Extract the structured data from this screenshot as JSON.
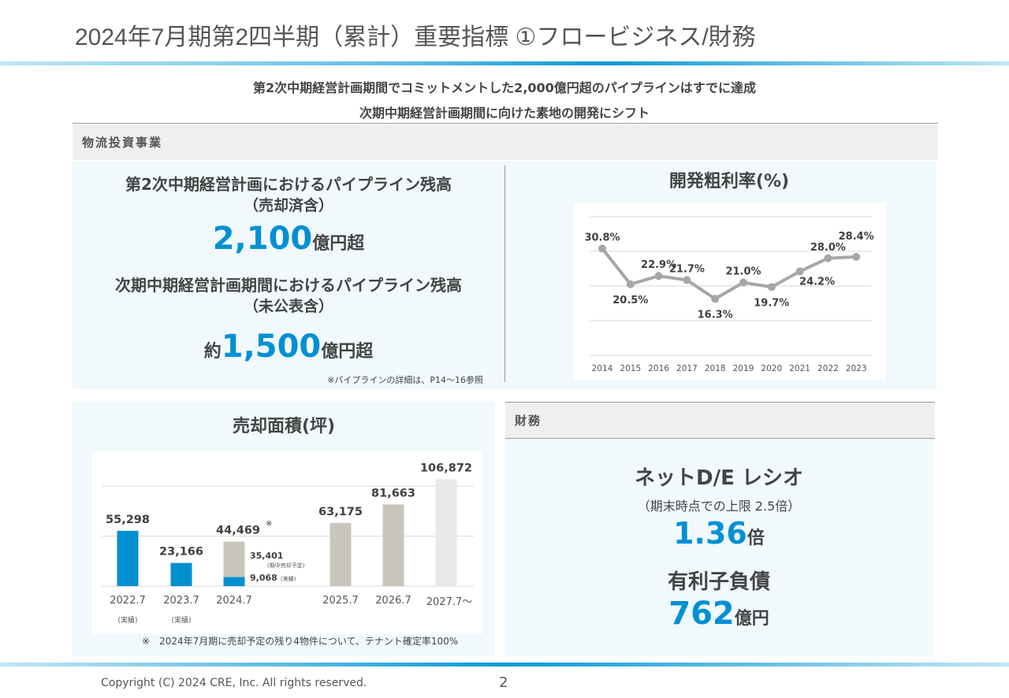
{
  "header": {
    "title": "2024年7月期第2四半期（累計）重要指標 ①フロービジネス/財務"
  },
  "subtitle": {
    "line1": "第2次中期経営計画期間でコミットメントした2,000億円超のパイプラインはすでに達成",
    "line2": "次期中期経営計画期間に向けた素地の開発にシフト"
  },
  "logistics": {
    "section_label": "物流投資事業",
    "pipeline1_title": "第2次中期経営計画におけるパイプライン残高",
    "pipeline1_sub": "（売却済含）",
    "pipeline1_value": "2,100",
    "pipeline1_unit": "億円超",
    "pipeline2_title": "次期中期経営計画期間におけるパイプライン残高",
    "pipeline2_sub": "（未公表含）",
    "pipeline2_prefix": "約",
    "pipeline2_value": "1,500",
    "pipeline2_unit": "億円超",
    "note": "※パイプラインの詳細は、P14～16参照"
  },
  "finance": {
    "section_label": "財務",
    "de_title": "ネットD/E レシオ",
    "de_sub": "（期末時点での上限 2.5倍）",
    "de_value": "1.36",
    "de_unit": "倍",
    "debt_title": "有利子負債",
    "debt_value": "762",
    "debt_unit": "億円"
  },
  "chart_data": [
    {
      "type": "line",
      "title": "開発粗利率(%)",
      "categories": [
        "2014",
        "2015",
        "2016",
        "2017",
        "2018",
        "2019",
        "2020",
        "2021",
        "2022",
        "2023"
      ],
      "values": [
        30.8,
        20.5,
        22.9,
        21.7,
        16.3,
        21.0,
        19.7,
        24.2,
        28.0,
        28.4
      ],
      "labels": [
        "30.8%",
        "20.5%",
        "22.9%",
        "21.7%",
        "16.3%",
        "21.0%",
        "19.7%",
        "24.2%",
        "28.0%",
        "28.4%"
      ],
      "ylim": [
        0,
        40
      ],
      "grid": true,
      "color": "#a6a6a6"
    },
    {
      "type": "bar",
      "title": "売却面積(坪)",
      "categories": [
        "2022.7",
        "2023.7",
        "2024.7",
        "2025.7",
        "2026.7",
        "2027.7～"
      ],
      "category_notes": [
        "(実績)",
        "(実績)",
        "",
        "",
        "",
        ""
      ],
      "series": [
        {
          "name": "実績",
          "values": [
            55298,
            23166,
            9068,
            0,
            0,
            0
          ]
        },
        {
          "name": "期中売却予定",
          "values": [
            0,
            0,
            35401,
            63175,
            81663,
            106872
          ]
        }
      ],
      "totals": [
        "55,298",
        "23,166",
        "44,469",
        "63,175",
        "81,663",
        "106,872"
      ],
      "total_mark": [
        "",
        "",
        "※",
        "",
        "",
        ""
      ],
      "segment_labels": {
        "actual": "9,068",
        "actual_note": "(実績)",
        "planned": "35,401",
        "planned_note": "(期中売却予定)"
      },
      "ylim": [
        0,
        110000
      ],
      "grid": true,
      "colors": {
        "actual": "#0090d0",
        "planned": "#c9c5bd",
        "future": "#e9e9e9"
      },
      "footnote": "※　2024年7月期に売却予定の残り4物件について、テナント確定率100%"
    }
  ],
  "footer": {
    "copyright": "Copyright (C) 2024 CRE, Inc. All rights reserved.",
    "page": "2"
  }
}
